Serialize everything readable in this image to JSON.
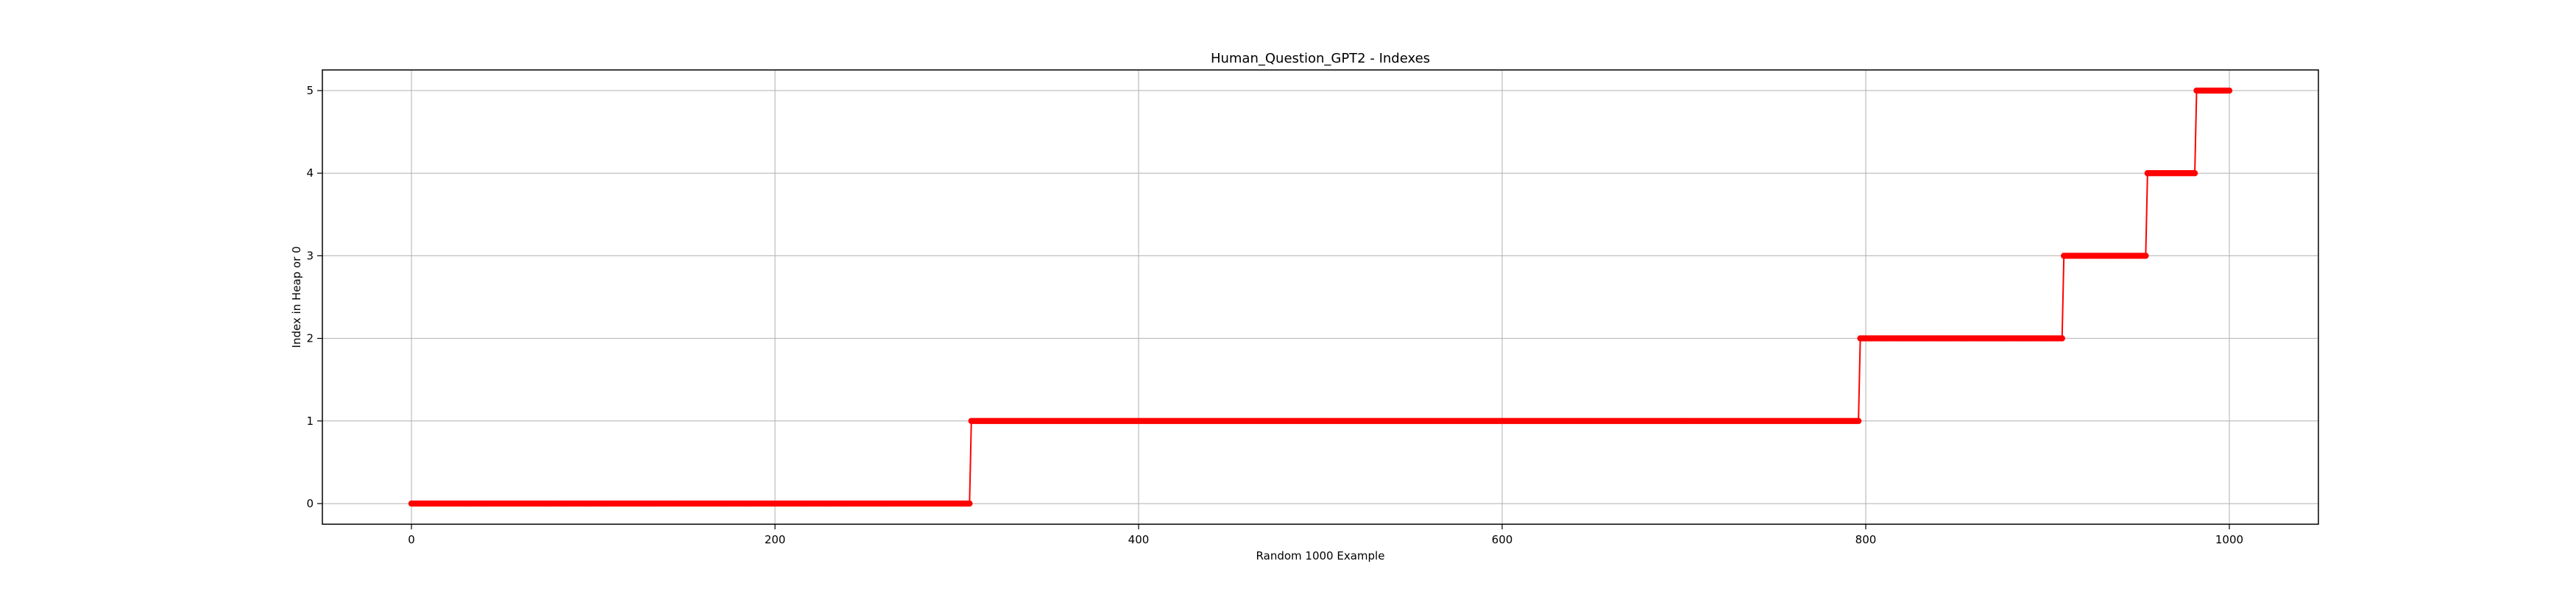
{
  "chart_data": {
    "type": "line",
    "title": "Human_Question_GPT2 - Indexes",
    "xlabel": "Random 1000 Example",
    "ylabel": "Index in Heap or 0",
    "xlim": [
      -49,
      1049
    ],
    "ylim": [
      -0.25,
      5.25
    ],
    "x_ticks": [
      0,
      200,
      400,
      600,
      800,
      1000
    ],
    "y_ticks": [
      0,
      1,
      2,
      3,
      4,
      5
    ],
    "grid": true,
    "legend": "none",
    "series": [
      {
        "color": "#ff0000",
        "marker": "circle",
        "segments": [
          {
            "from": 0,
            "to": 307,
            "value": 0
          },
          {
            "from": 308,
            "to": 796,
            "value": 1
          },
          {
            "from": 797,
            "to": 908,
            "value": 2
          },
          {
            "from": 909,
            "to": 954,
            "value": 3
          },
          {
            "from": 955,
            "to": 981,
            "value": 4
          },
          {
            "from": 982,
            "to": 1000,
            "value": 5
          }
        ]
      }
    ]
  }
}
